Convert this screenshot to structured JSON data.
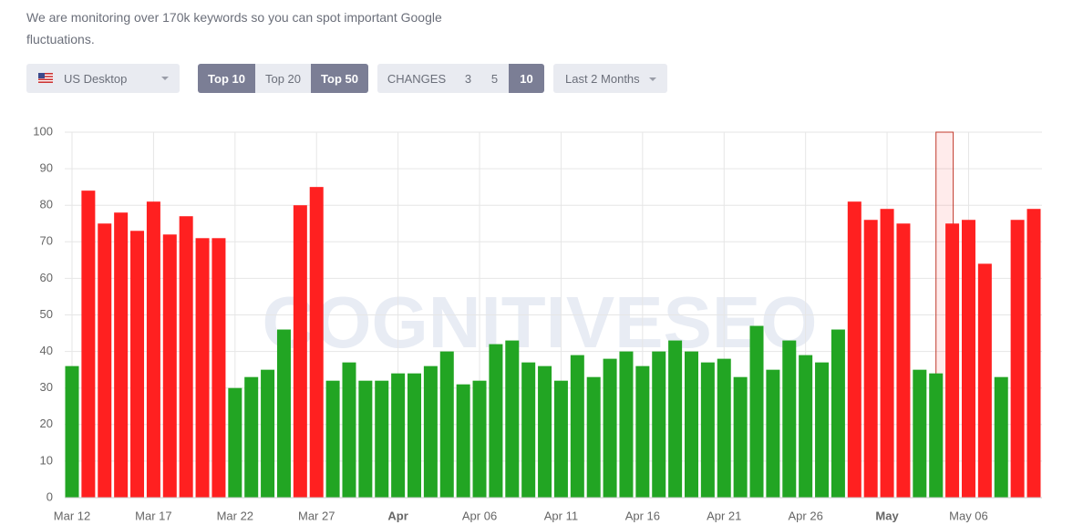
{
  "header": {
    "description": "We are monitoring over 170k keywords so you can spot important Google fluctuations."
  },
  "controls": {
    "region": "US Desktop",
    "top_buttons": [
      "Top 10",
      "Top 20",
      "Top 50"
    ],
    "changes_label": "CHANGES",
    "changes_buttons": [
      "3",
      "5",
      "10"
    ],
    "period": "Last 2 Months"
  },
  "chart_data": {
    "type": "bar",
    "watermark": "COGNITIVESEO",
    "categories": [
      "Mar 12",
      null,
      null,
      null,
      null,
      "Mar 17",
      null,
      null,
      null,
      null,
      "Mar 22",
      null,
      null,
      null,
      null,
      "Mar 27",
      null,
      null,
      null,
      null,
      "Apr",
      null,
      null,
      null,
      null,
      "Apr 06",
      null,
      null,
      null,
      null,
      "Apr 11",
      null,
      null,
      null,
      null,
      "Apr 16",
      null,
      null,
      null,
      null,
      "Apr 21",
      null,
      null,
      null,
      null,
      "Apr 26",
      null,
      null,
      null,
      null,
      "May",
      null,
      null,
      null,
      null,
      "May 06",
      null,
      null,
      null,
      null
    ],
    "values": [
      36,
      84,
      75,
      78,
      73,
      81,
      72,
      77,
      71,
      71,
      30,
      33,
      35,
      46,
      80,
      85,
      32,
      37,
      32,
      32,
      34,
      34,
      36,
      40,
      31,
      32,
      42,
      43,
      37,
      36,
      32,
      39,
      33,
      38,
      40,
      36,
      40,
      43,
      40,
      37,
      38,
      33,
      47,
      35,
      43,
      39,
      37,
      46,
      81,
      76,
      79,
      75,
      35,
      34,
      75,
      76,
      64,
      33,
      76,
      79
    ],
    "colors": [
      "#22a523",
      "#ff2020",
      "#ff2020",
      "#ff2020",
      "#ff2020",
      "#ff2020",
      "#ff2020",
      "#ff2020",
      "#ff2020",
      "#ff2020",
      "#22a523",
      "#22a523",
      "#22a523",
      "#22a523",
      "#ff2020",
      "#ff2020",
      "#22a523",
      "#22a523",
      "#22a523",
      "#22a523",
      "#22a523",
      "#22a523",
      "#22a523",
      "#22a523",
      "#22a523",
      "#22a523",
      "#22a523",
      "#22a523",
      "#22a523",
      "#22a523",
      "#22a523",
      "#22a523",
      "#22a523",
      "#22a523",
      "#22a523",
      "#22a523",
      "#22a523",
      "#22a523",
      "#22a523",
      "#22a523",
      "#22a523",
      "#22a523",
      "#22a523",
      "#22a523",
      "#22a523",
      "#22a523",
      "#22a523",
      "#22a523",
      "#ff2020",
      "#ff2020",
      "#ff2020",
      "#ff2020",
      "#22a523",
      "#22a523",
      "#ff2020",
      "#ff2020",
      "#ff2020",
      "#22a523",
      "#ff2020",
      "#ff2020"
    ],
    "ylim": [
      0,
      100
    ],
    "yticks": [
      0,
      10,
      20,
      30,
      40,
      50,
      60,
      70,
      80,
      90,
      100
    ],
    "grid": true
  }
}
